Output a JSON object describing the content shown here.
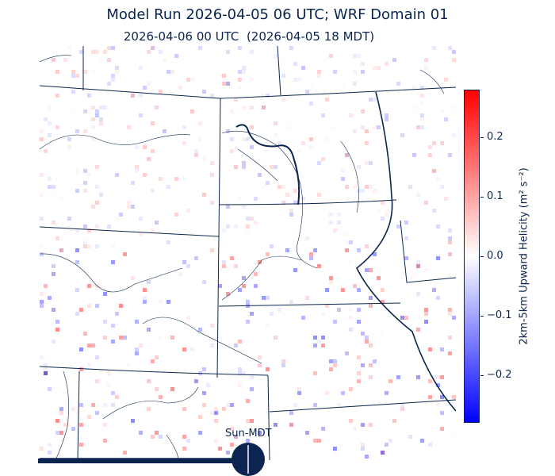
{
  "title": "Model Run 2026-04-05 06 UTC; WRF Domain 01",
  "subtitle": "2026-04-06 00 UTC  (2026-04-05 18 MDT)",
  "colorbar": {
    "label": "2km-5km Upward Helicity (m² s⁻²)",
    "range": [
      -0.28,
      0.28
    ],
    "colormap": "bwr",
    "colors": {
      "max": "#ff0000",
      "mid": "#ffffff",
      "min": "#0000ff"
    },
    "ticks": [
      "0.2",
      "0.1",
      "0.0",
      "−0.1",
      "−0.2"
    ],
    "tick_values": [
      0.2,
      0.1,
      0.0,
      -0.1,
      -0.2
    ]
  },
  "time_indicator": {
    "label": "Sun-MDT",
    "icon": "clock-dial-icon",
    "color": "#0b2550"
  },
  "colors": {
    "borders": "#0b2550"
  }
}
